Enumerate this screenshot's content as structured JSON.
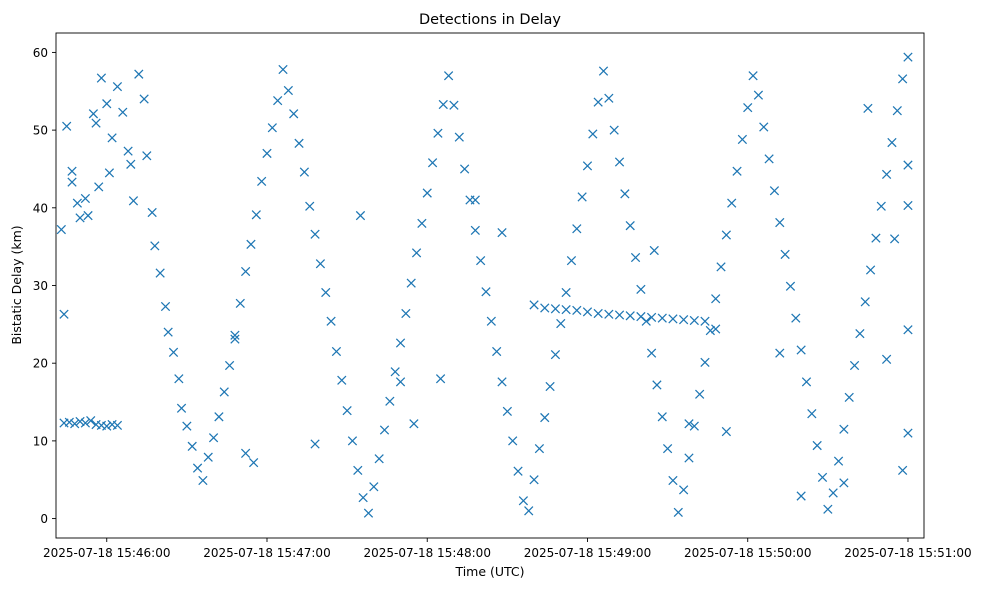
{
  "chart_data": {
    "type": "scatter",
    "title": "Detections in Delay",
    "xlabel": "Time (UTC)",
    "ylabel": "Bistatic Delay (km)",
    "x_tick_labels": [
      "2025-07-18 15:46:00",
      "2025-07-18 15:47:00",
      "2025-07-18 15:48:00",
      "2025-07-18 15:49:00",
      "2025-07-18 15:50:00",
      "2025-07-18 15:51:00"
    ],
    "x_ticks": [
      "2025-07-18 15:46:00",
      "2025-07-18 15:47:00",
      "2025-07-18 15:48:00",
      "2025-07-18 15:49:00",
      "2025-07-18 15:50:00",
      "2025-07-18 15:51:00"
    ],
    "y_ticks": [
      0,
      10,
      20,
      30,
      40,
      50,
      60
    ],
    "y_tick_labels": [
      "0",
      "10",
      "20",
      "30",
      "40",
      "50",
      "60"
    ],
    "xlim": [
      "2025-07-18 15:45:41",
      "2025-07-18 15:51:06"
    ],
    "ylim": [
      -2.5,
      62.5
    ],
    "grid": false,
    "marker": "x",
    "color": "#1f77b4",
    "points": [
      [
        "2025-07-18 15:45:43",
        37.2
      ],
      [
        "2025-07-18 15:45:44",
        26.3
      ],
      [
        "2025-07-18 15:45:45",
        50.5
      ],
      [
        "2025-07-18 15:45:47",
        44.7
      ],
      [
        "2025-07-18 15:45:47",
        43.3
      ],
      [
        "2025-07-18 15:45:49",
        40.6
      ],
      [
        "2025-07-18 15:45:50",
        38.7
      ],
      [
        "2025-07-18 15:45:52",
        41.2
      ],
      [
        "2025-07-18 15:45:53",
        39.0
      ],
      [
        "2025-07-18 15:45:55",
        52.1
      ],
      [
        "2025-07-18 15:45:56",
        50.9
      ],
      [
        "2025-07-18 15:45:57",
        42.7
      ],
      [
        "2025-07-18 15:45:58",
        56.7
      ],
      [
        "2025-07-18 15:46:00",
        53.4
      ],
      [
        "2025-07-18 15:46:01",
        44.5
      ],
      [
        "2025-07-18 15:46:02",
        49.0
      ],
      [
        "2025-07-18 15:46:04",
        55.6
      ],
      [
        "2025-07-18 15:46:06",
        52.3
      ],
      [
        "2025-07-18 15:46:08",
        47.3
      ],
      [
        "2025-07-18 15:46:09",
        45.6
      ],
      [
        "2025-07-18 15:46:10",
        40.9
      ],
      [
        "2025-07-18 15:46:12",
        57.2
      ],
      [
        "2025-07-18 15:46:14",
        54.0
      ],
      [
        "2025-07-18 15:46:15",
        46.7
      ],
      [
        "2025-07-18 15:46:17",
        39.4
      ],
      [
        "2025-07-18 15:46:18",
        35.1
      ],
      [
        "2025-07-18 15:46:20",
        31.6
      ],
      [
        "2025-07-18 15:46:22",
        27.3
      ],
      [
        "2025-07-18 15:46:23",
        24.0
      ],
      [
        "2025-07-18 15:46:25",
        21.4
      ],
      [
        "2025-07-18 15:46:27",
        18.0
      ],
      [
        "2025-07-18 15:46:28",
        14.2
      ],
      [
        "2025-07-18 15:46:30",
        11.9
      ],
      [
        "2025-07-18 15:46:32",
        9.3
      ],
      [
        "2025-07-18 15:46:34",
        6.5
      ],
      [
        "2025-07-18 15:46:36",
        4.9
      ],
      [
        "2025-07-18 15:46:38",
        7.9
      ],
      [
        "2025-07-18 15:46:40",
        10.4
      ],
      [
        "2025-07-18 15:46:42",
        13.1
      ],
      [
        "2025-07-18 15:46:44",
        16.3
      ],
      [
        "2025-07-18 15:46:46",
        19.7
      ],
      [
        "2025-07-18 15:46:48",
        23.6
      ],
      [
        "2025-07-18 15:46:50",
        27.7
      ],
      [
        "2025-07-18 15:46:52",
        31.8
      ],
      [
        "2025-07-18 15:46:54",
        35.3
      ],
      [
        "2025-07-18 15:46:56",
        39.1
      ],
      [
        "2025-07-18 15:46:58",
        43.4
      ],
      [
        "2025-07-18 15:47:00",
        47.0
      ],
      [
        "2025-07-18 15:47:02",
        50.3
      ],
      [
        "2025-07-18 15:47:04",
        53.8
      ],
      [
        "2025-07-18 15:47:06",
        57.8
      ],
      [
        "2025-07-18 15:47:08",
        55.1
      ],
      [
        "2025-07-18 15:47:10",
        52.1
      ],
      [
        "2025-07-18 15:47:12",
        48.3
      ],
      [
        "2025-07-18 15:47:14",
        44.6
      ],
      [
        "2025-07-18 15:47:16",
        40.2
      ],
      [
        "2025-07-18 15:47:18",
        36.6
      ],
      [
        "2025-07-18 15:47:20",
        32.8
      ],
      [
        "2025-07-18 15:47:22",
        29.1
      ],
      [
        "2025-07-18 15:47:24",
        25.4
      ],
      [
        "2025-07-18 15:47:26",
        21.5
      ],
      [
        "2025-07-18 15:47:28",
        17.8
      ],
      [
        "2025-07-18 15:47:30",
        13.9
      ],
      [
        "2025-07-18 15:47:32",
        10.0
      ],
      [
        "2025-07-18 15:47:34",
        6.2
      ],
      [
        "2025-07-18 15:47:36",
        2.7
      ],
      [
        "2025-07-18 15:47:38",
        0.7
      ],
      [
        "2025-07-18 15:47:40",
        4.1
      ],
      [
        "2025-07-18 15:47:42",
        7.7
      ],
      [
        "2025-07-18 15:47:44",
        11.4
      ],
      [
        "2025-07-18 15:47:46",
        15.1
      ],
      [
        "2025-07-18 15:47:48",
        18.9
      ],
      [
        "2025-07-18 15:47:50",
        22.6
      ],
      [
        "2025-07-18 15:47:52",
        26.4
      ],
      [
        "2025-07-18 15:47:54",
        30.3
      ],
      [
        "2025-07-18 15:47:56",
        34.2
      ],
      [
        "2025-07-18 15:47:58",
        38.0
      ],
      [
        "2025-07-18 15:48:00",
        41.9
      ],
      [
        "2025-07-18 15:48:02",
        45.8
      ],
      [
        "2025-07-18 15:48:04",
        49.6
      ],
      [
        "2025-07-18 15:48:06",
        53.3
      ],
      [
        "2025-07-18 15:48:08",
        57.0
      ],
      [
        "2025-07-18 15:48:10",
        53.2
      ],
      [
        "2025-07-18 15:48:12",
        49.1
      ],
      [
        "2025-07-18 15:48:14",
        45.0
      ],
      [
        "2025-07-18 15:48:16",
        41.0
      ],
      [
        "2025-07-18 15:48:18",
        37.1
      ],
      [
        "2025-07-18 15:48:20",
        33.2
      ],
      [
        "2025-07-18 15:48:22",
        29.2
      ],
      [
        "2025-07-18 15:48:24",
        25.4
      ],
      [
        "2025-07-18 15:48:26",
        21.5
      ],
      [
        "2025-07-18 15:48:28",
        17.6
      ],
      [
        "2025-07-18 15:48:30",
        13.8
      ],
      [
        "2025-07-18 15:48:32",
        10.0
      ],
      [
        "2025-07-18 15:48:34",
        6.1
      ],
      [
        "2025-07-18 15:48:36",
        2.3
      ],
      [
        "2025-07-18 15:48:38",
        1.0
      ],
      [
        "2025-07-18 15:48:40",
        5.0
      ],
      [
        "2025-07-18 15:48:42",
        9.0
      ],
      [
        "2025-07-18 15:48:44",
        13.0
      ],
      [
        "2025-07-18 15:48:46",
        17.0
      ],
      [
        "2025-07-18 15:48:48",
        21.1
      ],
      [
        "2025-07-18 15:48:50",
        25.1
      ],
      [
        "2025-07-18 15:48:52",
        29.1
      ],
      [
        "2025-07-18 15:48:54",
        33.2
      ],
      [
        "2025-07-18 15:48:56",
        37.3
      ],
      [
        "2025-07-18 15:48:58",
        41.4
      ],
      [
        "2025-07-18 15:49:00",
        45.4
      ],
      [
        "2025-07-18 15:49:02",
        49.5
      ],
      [
        "2025-07-18 15:49:04",
        53.6
      ],
      [
        "2025-07-18 15:49:06",
        57.6
      ],
      [
        "2025-07-18 15:49:08",
        54.1
      ],
      [
        "2025-07-18 15:49:10",
        50.0
      ],
      [
        "2025-07-18 15:49:12",
        45.9
      ],
      [
        "2025-07-18 15:49:14",
        41.8
      ],
      [
        "2025-07-18 15:49:16",
        37.7
      ],
      [
        "2025-07-18 15:49:18",
        33.6
      ],
      [
        "2025-07-18 15:49:20",
        29.5
      ],
      [
        "2025-07-18 15:49:22",
        25.4
      ],
      [
        "2025-07-18 15:49:24",
        21.3
      ],
      [
        "2025-07-18 15:49:26",
        17.2
      ],
      [
        "2025-07-18 15:49:28",
        13.1
      ],
      [
        "2025-07-18 15:49:30",
        9.0
      ],
      [
        "2025-07-18 15:49:32",
        4.9
      ],
      [
        "2025-07-18 15:49:34",
        0.8
      ],
      [
        "2025-07-18 15:49:36",
        3.7
      ],
      [
        "2025-07-18 15:49:38",
        7.8
      ],
      [
        "2025-07-18 15:49:40",
        11.9
      ],
      [
        "2025-07-18 15:49:42",
        16.0
      ],
      [
        "2025-07-18 15:49:44",
        20.1
      ],
      [
        "2025-07-18 15:49:46",
        24.2
      ],
      [
        "2025-07-18 15:49:48",
        28.3
      ],
      [
        "2025-07-18 15:49:50",
        32.4
      ],
      [
        "2025-07-18 15:49:52",
        36.5
      ],
      [
        "2025-07-18 15:49:54",
        40.6
      ],
      [
        "2025-07-18 15:49:56",
        44.7
      ],
      [
        "2025-07-18 15:49:58",
        48.8
      ],
      [
        "2025-07-18 15:50:00",
        52.9
      ],
      [
        "2025-07-18 15:50:02",
        57.0
      ],
      [
        "2025-07-18 15:50:04",
        54.5
      ],
      [
        "2025-07-18 15:50:06",
        50.4
      ],
      [
        "2025-07-18 15:50:08",
        46.3
      ],
      [
        "2025-07-18 15:50:10",
        42.2
      ],
      [
        "2025-07-18 15:50:12",
        38.1
      ],
      [
        "2025-07-18 15:50:14",
        34.0
      ],
      [
        "2025-07-18 15:50:16",
        29.9
      ],
      [
        "2025-07-18 15:50:18",
        25.8
      ],
      [
        "2025-07-18 15:50:20",
        21.7
      ],
      [
        "2025-07-18 15:50:22",
        17.6
      ],
      [
        "2025-07-18 15:50:24",
        13.5
      ],
      [
        "2025-07-18 15:50:26",
        9.4
      ],
      [
        "2025-07-18 15:50:28",
        5.3
      ],
      [
        "2025-07-18 15:50:30",
        1.2
      ],
      [
        "2025-07-18 15:50:32",
        3.3
      ],
      [
        "2025-07-18 15:50:34",
        7.4
      ],
      [
        "2025-07-18 15:50:36",
        11.5
      ],
      [
        "2025-07-18 15:50:38",
        15.6
      ],
      [
        "2025-07-18 15:50:40",
        19.7
      ],
      [
        "2025-07-18 15:50:42",
        23.8
      ],
      [
        "2025-07-18 15:50:44",
        27.9
      ],
      [
        "2025-07-18 15:50:46",
        32.0
      ],
      [
        "2025-07-18 15:50:48",
        36.1
      ],
      [
        "2025-07-18 15:50:50",
        40.2
      ],
      [
        "2025-07-18 15:50:52",
        44.3
      ],
      [
        "2025-07-18 15:50:54",
        48.4
      ],
      [
        "2025-07-18 15:50:56",
        52.5
      ],
      [
        "2025-07-18 15:50:58",
        56.6
      ],
      [
        "2025-07-18 15:51:00",
        59.4
      ],
      [
        "2025-07-18 15:51:00",
        45.5
      ],
      [
        "2025-07-18 15:51:00",
        40.3
      ],
      [
        "2025-07-18 15:51:00",
        24.3
      ],
      [
        "2025-07-18 15:51:00",
        11.0
      ],
      [
        "2025-07-18 15:50:58",
        6.2
      ],
      [
        "2025-07-18 15:45:44",
        12.3
      ],
      [
        "2025-07-18 15:45:46",
        12.4
      ],
      [
        "2025-07-18 15:45:48",
        12.2
      ],
      [
        "2025-07-18 15:45:50",
        12.5
      ],
      [
        "2025-07-18 15:45:52",
        12.3
      ],
      [
        "2025-07-18 15:45:54",
        12.6
      ],
      [
        "2025-07-18 15:45:56",
        12.1
      ],
      [
        "2025-07-18 15:45:58",
        12.0
      ],
      [
        "2025-07-18 15:46:00",
        11.9
      ],
      [
        "2025-07-18 15:46:02",
        12.1
      ],
      [
        "2025-07-18 15:46:04",
        12.0
      ],
      [
        "2025-07-18 15:48:40",
        27.5
      ],
      [
        "2025-07-18 15:48:44",
        27.1
      ],
      [
        "2025-07-18 15:48:48",
        27.0
      ],
      [
        "2025-07-18 15:48:52",
        26.9
      ],
      [
        "2025-07-18 15:48:56",
        26.8
      ],
      [
        "2025-07-18 15:49:00",
        26.6
      ],
      [
        "2025-07-18 15:49:04",
        26.4
      ],
      [
        "2025-07-18 15:49:08",
        26.3
      ],
      [
        "2025-07-18 15:49:12",
        26.2
      ],
      [
        "2025-07-18 15:49:16",
        26.1
      ],
      [
        "2025-07-18 15:49:20",
        26.0
      ],
      [
        "2025-07-18 15:49:24",
        25.9
      ],
      [
        "2025-07-18 15:49:28",
        25.8
      ],
      [
        "2025-07-18 15:49:32",
        25.7
      ],
      [
        "2025-07-18 15:49:36",
        25.6
      ],
      [
        "2025-07-18 15:49:40",
        25.5
      ],
      [
        "2025-07-18 15:49:44",
        25.4
      ],
      [
        "2025-07-18 15:49:48",
        24.4
      ],
      [
        "2025-07-18 15:46:48",
        23.1
      ],
      [
        "2025-07-18 15:46:52",
        8.4
      ],
      [
        "2025-07-18 15:46:55",
        7.2
      ],
      [
        "2025-07-18 15:47:18",
        9.6
      ],
      [
        "2025-07-18 15:47:35",
        39.0
      ],
      [
        "2025-07-18 15:47:50",
        17.6
      ],
      [
        "2025-07-18 15:47:55",
        12.2
      ],
      [
        "2025-07-18 15:48:05",
        18.0
      ],
      [
        "2025-07-18 15:48:18",
        41.0
      ],
      [
        "2025-07-18 15:48:28",
        36.8
      ],
      [
        "2025-07-18 15:49:25",
        34.5
      ],
      [
        "2025-07-18 15:49:38",
        12.2
      ],
      [
        "2025-07-18 15:49:52",
        11.2
      ],
      [
        "2025-07-18 15:50:12",
        21.3
      ],
      [
        "2025-07-18 15:50:20",
        2.9
      ],
      [
        "2025-07-18 15:50:36",
        4.6
      ],
      [
        "2025-07-18 15:50:45",
        52.8
      ],
      [
        "2025-07-18 15:50:52",
        20.5
      ],
      [
        "2025-07-18 15:50:55",
        36.0
      ]
    ]
  }
}
